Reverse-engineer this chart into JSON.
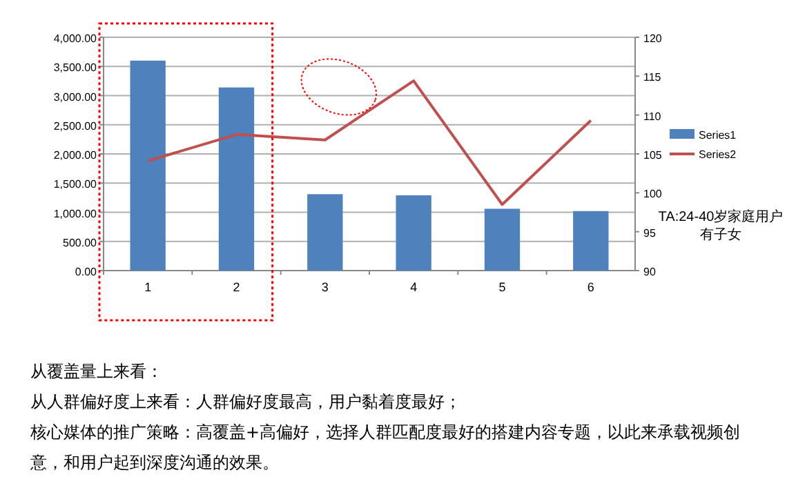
{
  "chart_data": {
    "type": "bar",
    "categories": [
      "1",
      "2",
      "3",
      "4",
      "5",
      "6"
    ],
    "series": [
      {
        "name": "Series1",
        "color": "#4f81bd",
        "values": [
          3600,
          3140,
          1310,
          1290,
          1060,
          1020
        ]
      },
      {
        "name": "Series2",
        "type": "line",
        "axis": "y2",
        "color": "#c0504d",
        "values": [
          104.1,
          107.5,
          106.8,
          114.4,
          98.5,
          109.3
        ]
      }
    ],
    "ylim": [
      0,
      4000
    ],
    "yticks": [
      {
        "value": 0,
        "label": "0.00"
      },
      {
        "value": 500,
        "label": "500.00"
      },
      {
        "value": 1000,
        "label": "1,000.00"
      },
      {
        "value": 1500,
        "label": "1,500.00"
      },
      {
        "value": 2000,
        "label": "2,000.00"
      },
      {
        "value": 2500,
        "label": "2,500.00"
      },
      {
        "value": 3000,
        "label": "3,000.00"
      },
      {
        "value": 3500,
        "label": "3,500.00"
      },
      {
        "value": 4000,
        "label": "4,000.00"
      }
    ],
    "y2lim": [
      90,
      120
    ],
    "y2ticks": [
      90,
      95,
      100,
      105,
      110,
      115,
      120
    ],
    "grid": "y",
    "legend": "right",
    "annotations": [
      "TA:24-40岁家庭用户",
      "有子女",
      "从覆盖量上来看：",
      "从人群偏好度上来看：人群偏好度最高，用户黏着度最好；",
      "核心媒体的推广策略：高覆盖+高偏好，选择人群匹配度最好的搭建内容专题，以此来承载视频创意，和用户起到深度沟通的效果。"
    ]
  }
}
